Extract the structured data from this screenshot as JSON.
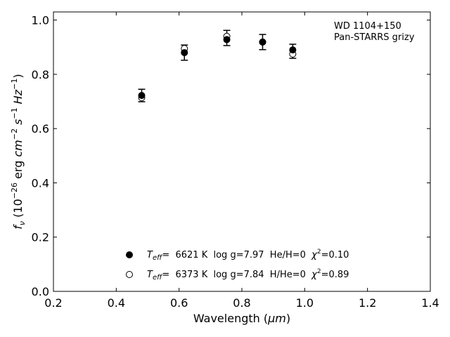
{
  "chart_data": {
    "type": "scatter",
    "title": "",
    "xlabel_prefix": "Wavelength (",
    "xlabel_unit": "μm",
    "xlabel_suffix": ")",
    "ylabel_parts": {
      "f": "f",
      "nu": "ν",
      "open": " (10",
      "exp1": "−26",
      "erg": " erg ",
      "cm": "cm",
      "exp2": "−2",
      "s": " s",
      "exp3": "−1",
      "hz": " Hz",
      "exp4": "−1",
      "close": ")"
    },
    "xlim": [
      0.2,
      1.4
    ],
    "ylim": [
      0.0,
      1.03
    ],
    "xticks": [
      "0.2",
      "0.4",
      "0.6",
      "0.8",
      "1.0",
      "1.2",
      "1.4"
    ],
    "yticks": [
      "0.0",
      "0.2",
      "0.4",
      "0.6",
      "0.8",
      "1.0"
    ],
    "annotation": [
      "WD 1104+150",
      "Pan-STARRS grizy"
    ],
    "observed": {
      "x": [
        0.481,
        0.617,
        0.752,
        0.866,
        0.962
      ],
      "y": [
        0.722,
        0.88,
        0.934,
        0.919,
        0.885
      ],
      "err": [
        0.023,
        0.028,
        0.028,
        0.028,
        0.026
      ]
    },
    "models": [
      {
        "marker": "filled",
        "x": [
          0.481,
          0.617,
          0.752,
          0.866,
          0.962
        ],
        "y": [
          0.722,
          0.88,
          0.928,
          0.919,
          0.89
        ],
        "legend": {
          "T": "T",
          "eff": "eff",
          "rest1": "=  6621 K  log g=7.97  He/H=0  ",
          "chi": "χ",
          "sq": "2",
          "rest2": "=0.10"
        }
      },
      {
        "marker": "open",
        "x": [
          0.481,
          0.617,
          0.752,
          0.866,
          0.962
        ],
        "y": [
          0.714,
          0.895,
          0.94,
          0.919,
          0.875
        ],
        "legend": {
          "T": "T",
          "eff": "eff",
          "rest1": "=  6373 K  log g=7.84  H/He=0  ",
          "chi": "χ",
          "sq": "2",
          "rest2": "=0.89"
        }
      }
    ],
    "legend_position": "lower-center",
    "grid": false
  }
}
